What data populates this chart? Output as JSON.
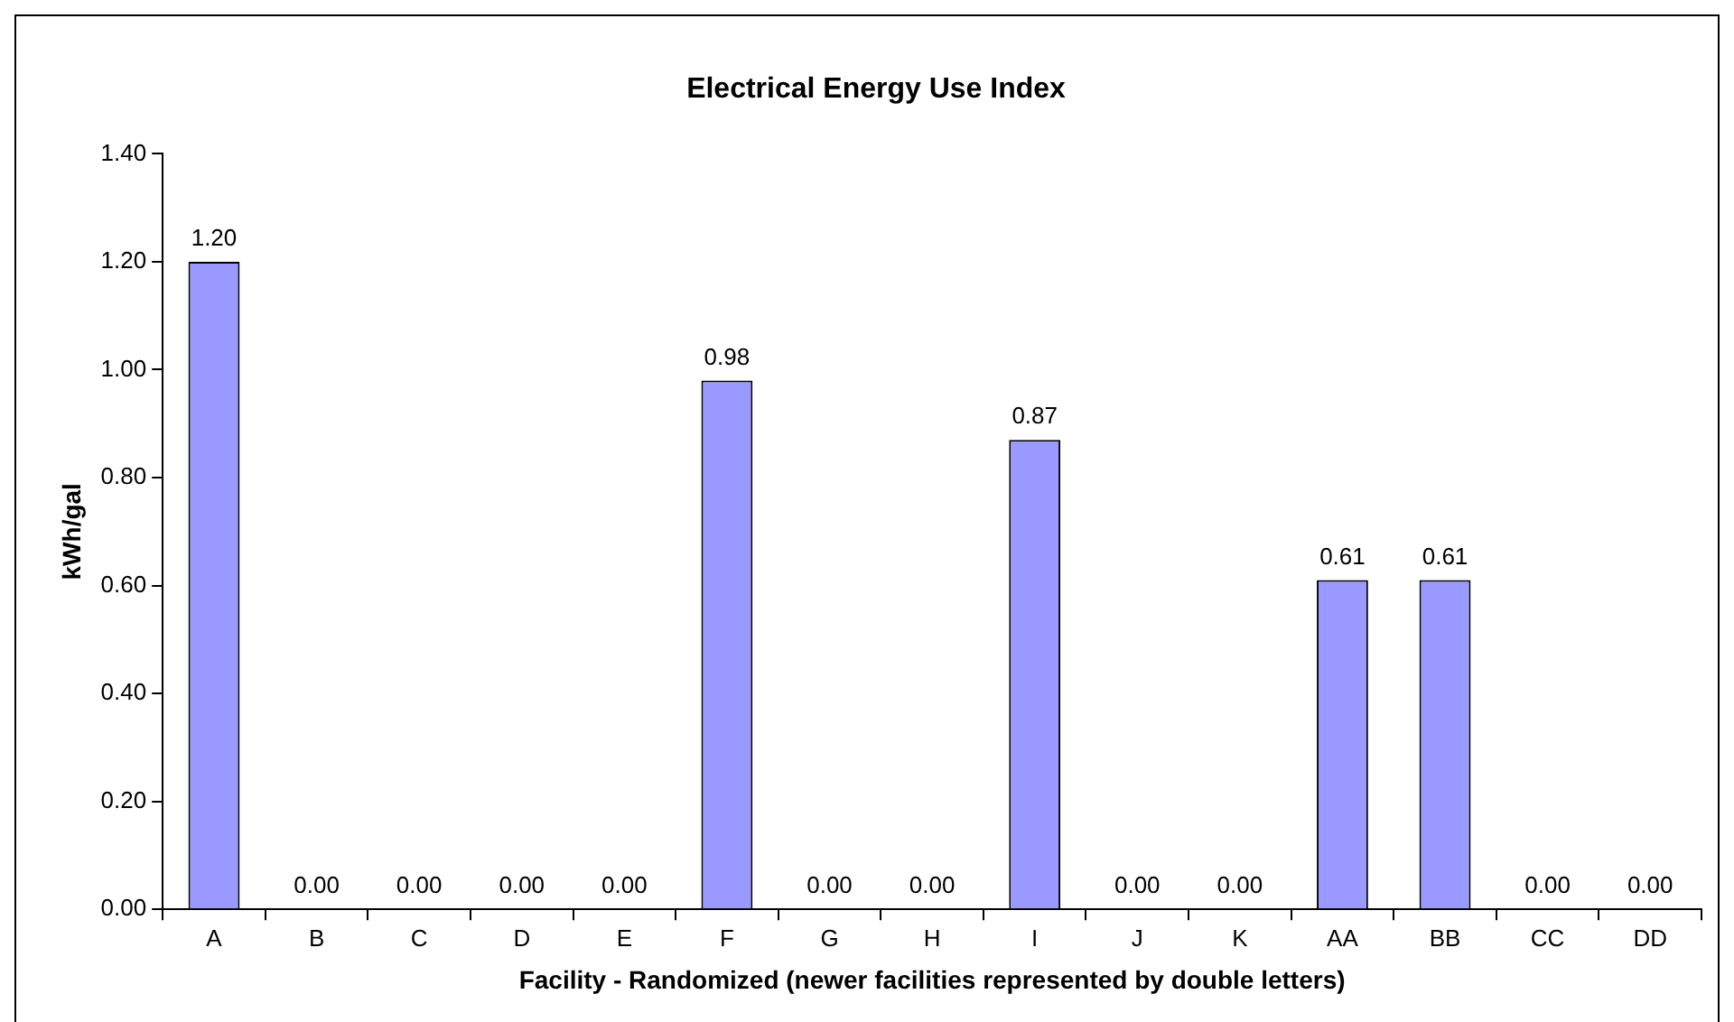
{
  "chart_data": {
    "type": "bar",
    "title": "Electrical Energy Use Index",
    "xlabel": "Facility - Randomized (newer facilities represented by double letters)",
    "ylabel": "kWh/gal",
    "categories": [
      "A",
      "B",
      "C",
      "D",
      "E",
      "F",
      "G",
      "H",
      "I",
      "J",
      "K",
      "AA",
      "BB",
      "CC",
      "DD"
    ],
    "values": [
      1.2,
      0,
      0,
      0,
      0,
      0.98,
      0,
      0,
      0.87,
      0,
      0,
      0.61,
      0.61,
      0,
      0
    ],
    "value_labels": [
      "1.20",
      "0.00",
      "0.00",
      "0.00",
      "0.00",
      "0.98",
      "0.00",
      "0.00",
      "0.87",
      "0.00",
      "0.00",
      "0.61",
      "0.61",
      "0.00",
      "0.00"
    ],
    "color": "#9999ff",
    "ylim": [
      0,
      1.4
    ],
    "yticks": [
      {
        "value": 0,
        "label": "0.00"
      },
      {
        "value": 0.2,
        "label": "0.20"
      },
      {
        "value": 0.4,
        "label": "0.40"
      },
      {
        "value": 0.6,
        "label": "0.60"
      },
      {
        "value": 0.8,
        "label": "0.80"
      },
      {
        "value": 1,
        "label": "1.00"
      },
      {
        "value": 1.2,
        "label": "1.20"
      },
      {
        "value": 1.4,
        "label": "1.40"
      }
    ],
    "grid": false,
    "legend": false
  }
}
